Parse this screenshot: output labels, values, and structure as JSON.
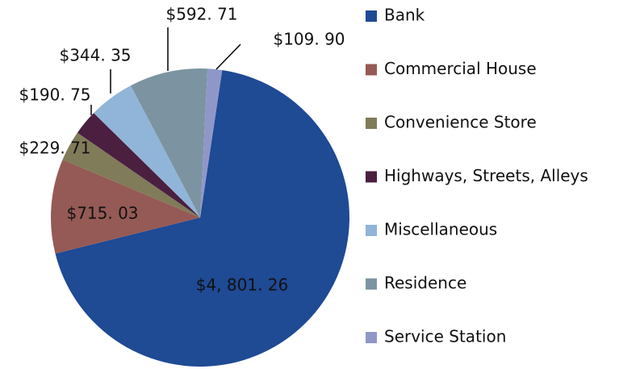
{
  "chart_data": {
    "type": "pie",
    "categories": [
      "Bank",
      "Commercial House",
      "Convenience Store",
      "Highways, Streets, Alleys",
      "Miscellaneous",
      "Residence",
      "Service Station"
    ],
    "values": [
      4801.26,
      715.03,
      229.71,
      190.75,
      344.35,
      592.71,
      109.9
    ],
    "value_labels": [
      "$4, 801. 26",
      "$715. 03",
      "$229. 71",
      "$190. 75",
      "$344. 35",
      "$592. 71",
      "$109. 90"
    ],
    "colors": [
      "#1f4a94",
      "#955a55",
      "#807b59",
      "#4a1f40",
      "#90b5d8",
      "#7c94a1",
      "#8f97c9"
    ],
    "legend": "right"
  }
}
